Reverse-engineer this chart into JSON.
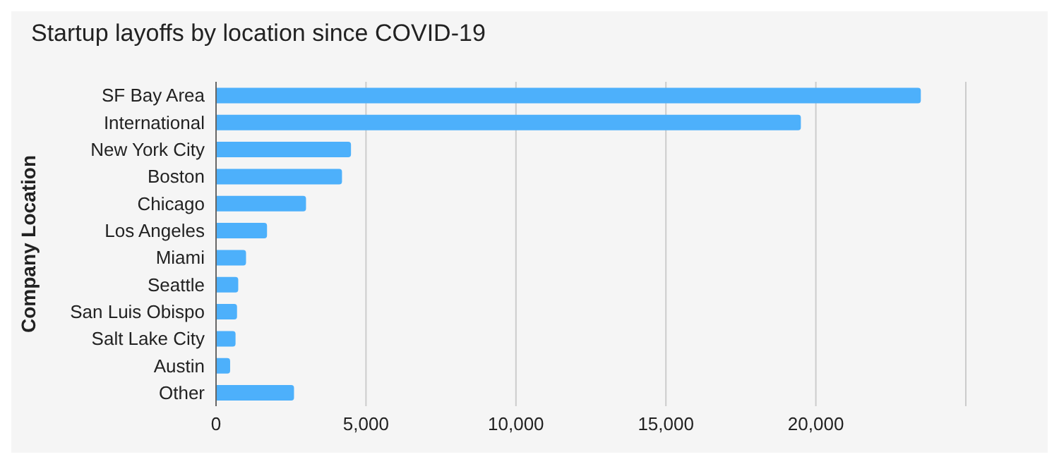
{
  "chart_data": {
    "type": "bar",
    "orientation": "horizontal",
    "title": "Startup layoffs by location since COVID-19",
    "ylabel": "Company Location",
    "categories": [
      "SF Bay Area",
      "International",
      "New York City",
      "Boston",
      "Chicago",
      "Los Angeles",
      "Miami",
      "Seattle",
      "San Luis Obispo",
      "Salt Lake City",
      "Austin",
      "Other"
    ],
    "values": [
      23500,
      19500,
      4500,
      4200,
      3000,
      1700,
      1000,
      740,
      700,
      650,
      470,
      2600
    ],
    "color": "#4db0fb",
    "xlim": [
      0,
      25000
    ],
    "xticks": [
      {
        "value": 0,
        "label": "0"
      },
      {
        "value": 5000,
        "label": "5,000"
      },
      {
        "value": 10000,
        "label": "10,000"
      },
      {
        "value": 15000,
        "label": "15,000"
      },
      {
        "value": 20000,
        "label": "20,000"
      },
      {
        "value": 25000,
        "label": null
      }
    ],
    "grid": "x"
  }
}
